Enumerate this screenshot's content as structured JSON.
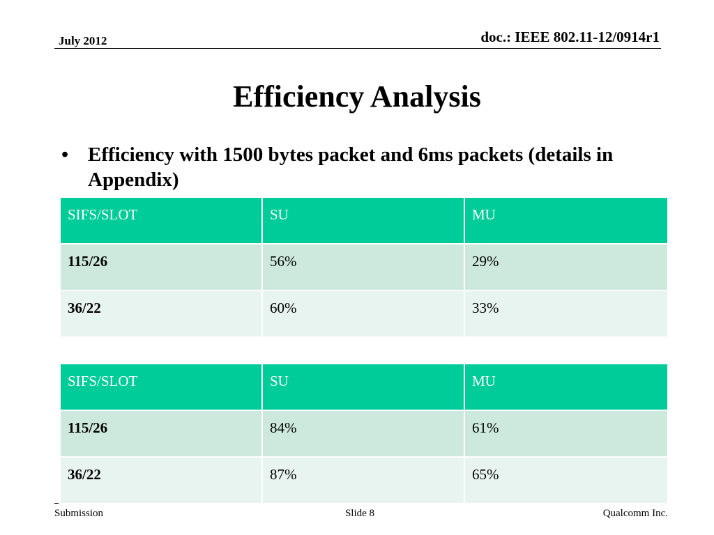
{
  "header": {
    "date": "July 2012",
    "doc_id": "doc.: IEEE 802.11-12/0914r1"
  },
  "title": "Efficiency Analysis",
  "bullets": [
    {
      "symbol": "•",
      "text": "Efficiency with 1500 bytes packet and 6ms packets (details in Appendix)"
    }
  ],
  "tables": [
    {
      "headers": [
        "SIFS/SLOT",
        "SU",
        "MU"
      ],
      "rows": [
        [
          "115/26",
          "56%",
          "29%"
        ],
        [
          "36/22",
          "60%",
          "33%"
        ]
      ]
    },
    {
      "headers": [
        "SIFS/SLOT",
        "SU",
        "MU"
      ],
      "rows": [
        [
          "115/26",
          "84%",
          "61%"
        ],
        [
          "36/22",
          "87%",
          "65%"
        ]
      ]
    }
  ],
  "footer": {
    "left": "Submission",
    "center": "Slide 8",
    "right": "Qualcomm Inc."
  },
  "colors": {
    "header_fill": "#00cc99",
    "row_odd_fill": "#cde9de",
    "row_even_fill": "#e8f4ef"
  }
}
